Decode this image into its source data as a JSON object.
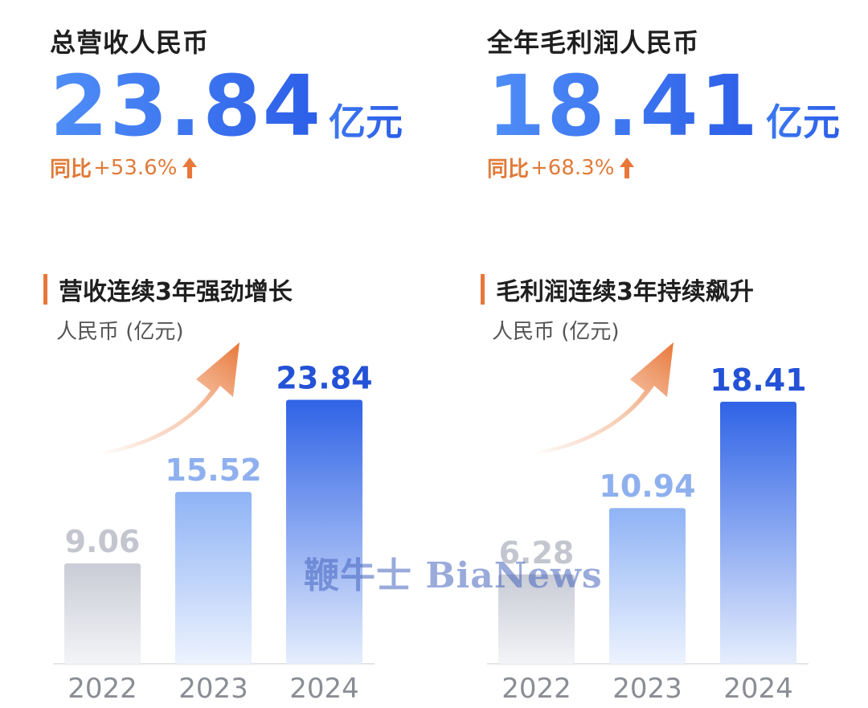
{
  "kpis": [
    {
      "title": "总营收人民币",
      "value": "23.84",
      "unit": "亿元",
      "yoy_label": "同比",
      "yoy_value": "+53.6%"
    },
    {
      "title": "全年毛利润人民币",
      "value": "18.41",
      "unit": "亿元",
      "yoy_label": "同比",
      "yoy_value": "+68.3%"
    }
  ],
  "colors": {
    "accent_orange": "#e8773a",
    "bar_2024": "#2f63e6",
    "bar_2023": "#8fb3f5",
    "bar_2022": "#c4c8d4"
  },
  "watermark": "鞭牛士 BiaNews",
  "chart_data": [
    {
      "type": "bar",
      "title": "营收连续3年强劲增长",
      "unit_note": "人民币 (亿元)",
      "categories": [
        "2022",
        "2023",
        "2024"
      ],
      "values": [
        9.06,
        15.52,
        23.84
      ],
      "value_labels": [
        "9.06",
        "15.52",
        "23.84"
      ],
      "ylim": [
        0,
        27
      ],
      "growth_arrow": true
    },
    {
      "type": "bar",
      "title": "毛利润连续3年持续飙升",
      "unit_note": "人民币 (亿元)",
      "categories": [
        "2022",
        "2023",
        "2024"
      ],
      "values": [
        6.28,
        10.94,
        18.41
      ],
      "value_labels": [
        "6.28",
        "10.94",
        "18.41"
      ],
      "ylim": [
        0,
        21
      ],
      "growth_arrow": true
    }
  ]
}
